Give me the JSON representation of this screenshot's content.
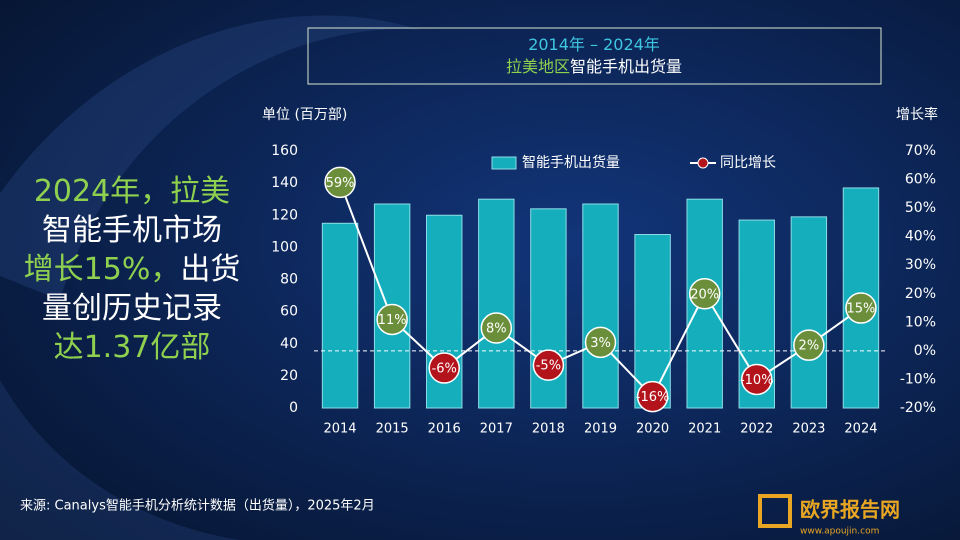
{
  "chart_data": {
    "type": "bar-line",
    "title_parts": [
      {
        "text": "2014年 – 2024年",
        "color": "#3fc6e0"
      },
      {
        "text": "拉美地区",
        "color": "#8fd14f"
      },
      {
        "text": "智能手机出货量",
        "color": "#ffffff"
      }
    ],
    "y_axis_label": "单位 (百万部)",
    "y2_axis_label": "增长率",
    "categories": [
      "2014",
      "2015",
      "2016",
      "2017",
      "2018",
      "2019",
      "2020",
      "2021",
      "2022",
      "2023",
      "2024"
    ],
    "series": [
      {
        "name": "智能手机出货量",
        "type": "bar",
        "color": "#14aebd",
        "values": [
          115,
          127,
          120,
          130,
          124,
          127,
          108,
          130,
          117,
          119,
          137
        ]
      },
      {
        "name": "同比增长",
        "type": "line",
        "axis": "y2",
        "color": "#ffffff",
        "positive_color": "#6a8e3a",
        "negative_color": "#b3131b",
        "values": [
          59,
          11,
          -6,
          8,
          -5,
          3,
          -16,
          20,
          -10,
          2,
          15
        ],
        "value_labels": [
          "59%",
          "11%",
          "-6%",
          "8%",
          "-5%",
          "3%",
          "-16%",
          "20%",
          "-10%",
          "2%",
          "15%"
        ]
      }
    ],
    "ylim": [
      0,
      160
    ],
    "yticks": [
      0,
      20,
      40,
      60,
      80,
      100,
      120,
      140,
      160
    ],
    "y2lim": [
      -20,
      70
    ],
    "y2ticks": [
      {
        "value": -20,
        "label": "-20%"
      },
      {
        "value": -10,
        "label": "-10%"
      },
      {
        "value": 0,
        "label": "0%"
      },
      {
        "value": 10,
        "label": "10%"
      },
      {
        "value": 20,
        "label": "20%"
      },
      {
        "value": 30,
        "label": "30%"
      },
      {
        "value": 40,
        "label": "40%"
      },
      {
        "value": 50,
        "label": "50%"
      },
      {
        "value": 60,
        "label": "60%"
      },
      {
        "value": 70,
        "label": "70%"
      }
    ],
    "headline_lines": [
      [
        {
          "text": "2024年，拉美",
          "color": "#8fd14f"
        }
      ],
      [
        {
          "text": "智能手机市场",
          "color": "#ffffff"
        }
      ],
      [
        {
          "text": "增长15%，",
          "color": "#8fd14f"
        },
        {
          "text": "出货",
          "color": "#ffffff"
        }
      ],
      [
        {
          "text": "量创历史记录",
          "color": "#ffffff"
        }
      ],
      [
        {
          "text": "达1.37亿部",
          "color": "#8fd14f"
        }
      ]
    ],
    "source": "来源: Canalys智能手机分析统计数据（出货量），2025年2月",
    "logo": "欧界报告网",
    "website": "www.apoujin.com"
  }
}
